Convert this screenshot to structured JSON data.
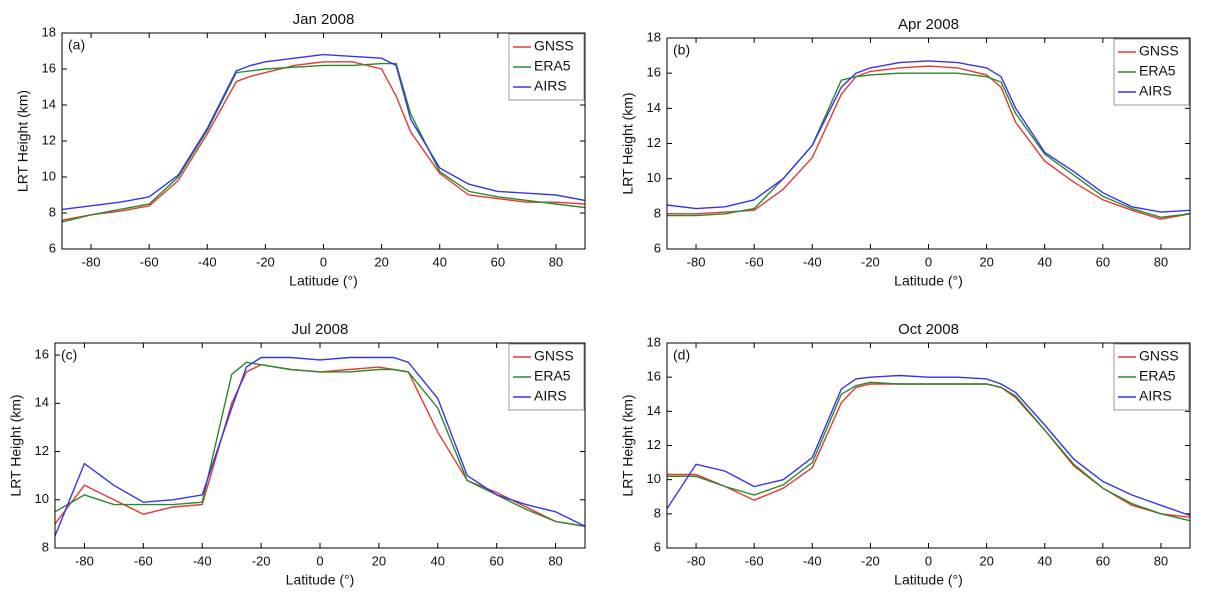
{
  "chart_data": [
    {
      "type": "line",
      "title": "Jan 2008",
      "panel_label": "(a)",
      "xlabel": "Latitude (°)",
      "ylabel": "LRT Height (km)",
      "x": [
        -90,
        -80,
        -70,
        -60,
        -50,
        -40,
        -30,
        -25,
        -20,
        -10,
        0,
        10,
        20,
        25,
        30,
        40,
        50,
        60,
        70,
        80,
        90
      ],
      "series": [
        {
          "name": "GNSS",
          "color": "#e23b33",
          "values": [
            7.6,
            7.9,
            8.1,
            8.4,
            9.8,
            12.4,
            15.3,
            15.6,
            15.8,
            16.2,
            16.4,
            16.4,
            16.0,
            14.5,
            12.5,
            10.2,
            9.0,
            8.8,
            8.6,
            8.6,
            8.5
          ]
        },
        {
          "name": "ERA5",
          "color": "#2a8a2a",
          "values": [
            7.5,
            7.9,
            8.2,
            8.5,
            10.0,
            12.6,
            15.8,
            15.9,
            16.0,
            16.1,
            16.2,
            16.2,
            16.3,
            16.3,
            13.5,
            10.3,
            9.2,
            8.9,
            8.7,
            8.5,
            8.3
          ]
        },
        {
          "name": "AIRS",
          "color": "#3535ee",
          "values": [
            8.2,
            8.4,
            8.6,
            8.9,
            10.1,
            12.7,
            15.9,
            16.2,
            16.4,
            16.6,
            16.8,
            16.7,
            16.6,
            16.2,
            13.2,
            10.5,
            9.6,
            9.2,
            9.1,
            9.0,
            8.7
          ]
        }
      ],
      "xlim": [
        -90,
        90
      ],
      "xticks": [
        -80,
        -60,
        -40,
        -20,
        0,
        20,
        40,
        60,
        80
      ],
      "ylim": [
        6,
        18
      ],
      "yticks": [
        6,
        8,
        10,
        12,
        14,
        16,
        18
      ],
      "legend": "upper right"
    },
    {
      "type": "line",
      "title": "Apr 2008",
      "panel_label": "(b)",
      "xlabel": "Latitude (°)",
      "ylabel": "LRT Height (km)",
      "x": [
        -90,
        -80,
        -70,
        -60,
        -50,
        -40,
        -30,
        -25,
        -20,
        -10,
        0,
        10,
        20,
        25,
        30,
        40,
        50,
        60,
        70,
        80,
        90
      ],
      "series": [
        {
          "name": "GNSS",
          "color": "#e23b33",
          "values": [
            8.0,
            8.0,
            8.1,
            8.2,
            9.4,
            11.2,
            14.8,
            15.8,
            16.1,
            16.3,
            16.4,
            16.3,
            15.9,
            15.2,
            13.2,
            11.0,
            9.8,
            8.8,
            8.2,
            7.7,
            8.0
          ]
        },
        {
          "name": "ERA5",
          "color": "#2a8a2a",
          "values": [
            7.9,
            7.9,
            8.0,
            8.3,
            10.0,
            11.9,
            15.6,
            15.8,
            15.9,
            16.0,
            16.0,
            16.0,
            15.8,
            15.5,
            13.7,
            11.4,
            10.2,
            9.0,
            8.3,
            7.8,
            8.0
          ]
        },
        {
          "name": "AIRS",
          "color": "#3535ee",
          "values": [
            8.5,
            8.3,
            8.4,
            8.8,
            10.0,
            11.9,
            15.2,
            16.0,
            16.3,
            16.6,
            16.7,
            16.6,
            16.3,
            15.8,
            14.0,
            11.5,
            10.4,
            9.2,
            8.4,
            8.1,
            8.2
          ]
        }
      ],
      "xlim": [
        -90,
        90
      ],
      "xticks": [
        -80,
        -60,
        -40,
        -20,
        0,
        20,
        40,
        60,
        80
      ],
      "ylim": [
        6,
        18
      ],
      "yticks": [
        6,
        8,
        10,
        12,
        14,
        16,
        18
      ],
      "legend": "upper right"
    },
    {
      "type": "line",
      "title": "Jul 2008",
      "panel_label": "(c)",
      "xlabel": "Latitude (°)",
      "ylabel": "LRT Height (km)",
      "x": [
        -90,
        -80,
        -70,
        -60,
        -50,
        -40,
        -30,
        -25,
        -20,
        -10,
        0,
        10,
        20,
        25,
        30,
        40,
        50,
        60,
        70,
        80,
        90
      ],
      "series": [
        {
          "name": "GNSS",
          "color": "#e23b33",
          "values": [
            9.0,
            10.6,
            10.0,
            9.4,
            9.7,
            9.8,
            14.0,
            15.3,
            15.6,
            15.4,
            15.3,
            15.4,
            15.5,
            15.4,
            15.3,
            12.8,
            10.8,
            10.3,
            9.7,
            9.1,
            8.9
          ]
        },
        {
          "name": "ERA5",
          "color": "#2a8a2a",
          "values": [
            9.5,
            10.2,
            9.8,
            9.8,
            9.8,
            9.9,
            15.2,
            15.7,
            15.6,
            15.4,
            15.3,
            15.3,
            15.4,
            15.4,
            15.3,
            13.8,
            10.8,
            10.2,
            9.6,
            9.1,
            8.9
          ]
        },
        {
          "name": "AIRS",
          "color": "#3535ee",
          "values": [
            8.5,
            11.5,
            10.6,
            9.9,
            10.0,
            10.2,
            13.8,
            15.5,
            15.9,
            15.9,
            15.8,
            15.9,
            15.9,
            15.9,
            15.7,
            14.2,
            11.0,
            10.2,
            9.8,
            9.5,
            8.9
          ]
        }
      ],
      "xlim": [
        -90,
        90
      ],
      "xticks": [
        -80,
        -60,
        -40,
        -20,
        0,
        20,
        40,
        60,
        80
      ],
      "ylim": [
        8,
        16.5
      ],
      "yticks": [
        8,
        10,
        12,
        14,
        16
      ],
      "legend": "upper right"
    },
    {
      "type": "line",
      "title": "Oct 2008",
      "panel_label": "(d)",
      "xlabel": "Latitude (°)",
      "ylabel": "LRT Height (km)",
      "x": [
        -90,
        -80,
        -70,
        -60,
        -50,
        -40,
        -30,
        -25,
        -20,
        -10,
        0,
        10,
        20,
        25,
        30,
        40,
        50,
        60,
        70,
        80,
        90
      ],
      "series": [
        {
          "name": "GNSS",
          "color": "#e23b33",
          "values": [
            10.3,
            10.3,
            9.6,
            8.8,
            9.5,
            10.7,
            14.5,
            15.4,
            15.6,
            15.6,
            15.6,
            15.6,
            15.6,
            15.4,
            14.8,
            12.9,
            10.8,
            9.5,
            8.5,
            8.0,
            7.8
          ]
        },
        {
          "name": "ERA5",
          "color": "#2a8a2a",
          "values": [
            10.2,
            10.2,
            9.6,
            9.1,
            9.7,
            11.0,
            15.0,
            15.5,
            15.7,
            15.6,
            15.6,
            15.6,
            15.6,
            15.4,
            14.9,
            12.9,
            10.9,
            9.5,
            8.6,
            8.0,
            7.6
          ]
        },
        {
          "name": "AIRS",
          "color": "#3535ee",
          "values": [
            8.3,
            10.9,
            10.5,
            9.6,
            10.0,
            11.3,
            15.3,
            15.9,
            16.0,
            16.1,
            16.0,
            16.0,
            15.9,
            15.6,
            15.1,
            13.2,
            11.2,
            9.9,
            9.1,
            8.5,
            7.9
          ]
        }
      ],
      "xlim": [
        -90,
        90
      ],
      "xticks": [
        -80,
        -60,
        -40,
        -20,
        0,
        20,
        40,
        60,
        80
      ],
      "ylim": [
        6,
        18
      ],
      "yticks": [
        6,
        8,
        10,
        12,
        14,
        16,
        18
      ],
      "legend": "upper right"
    }
  ]
}
